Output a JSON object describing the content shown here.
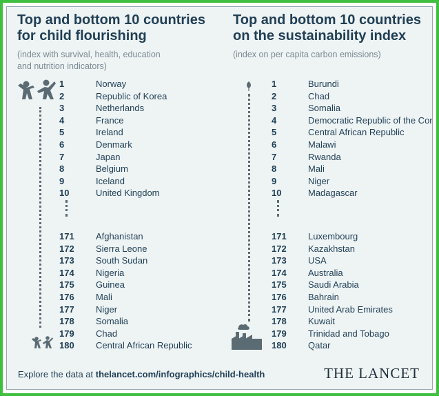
{
  "left": {
    "title_line1": "Top and bottom 10 countries",
    "title_line2": "for child flourishing",
    "subtitle_line1": "(index with survival, health, education",
    "subtitle_line2": "and nutrition indicators)",
    "top": [
      {
        "rank": "1",
        "country": "Norway"
      },
      {
        "rank": "2",
        "country": "Republic of Korea"
      },
      {
        "rank": "3",
        "country": "Netherlands"
      },
      {
        "rank": "4",
        "country": "France"
      },
      {
        "rank": "5",
        "country": "Ireland"
      },
      {
        "rank": "6",
        "country": "Denmark"
      },
      {
        "rank": "7",
        "country": "Japan"
      },
      {
        "rank": "8",
        "country": "Belgium"
      },
      {
        "rank": "9",
        "country": "Iceland"
      },
      {
        "rank": "10",
        "country": "United Kingdom"
      }
    ],
    "bottom": [
      {
        "rank": "171",
        "country": "Afghanistan"
      },
      {
        "rank": "172",
        "country": "Sierra Leone"
      },
      {
        "rank": "173",
        "country": "South Sudan"
      },
      {
        "rank": "174",
        "country": "Nigeria"
      },
      {
        "rank": "175",
        "country": "Guinea"
      },
      {
        "rank": "176",
        "country": "Mali"
      },
      {
        "rank": "177",
        "country": "Niger"
      },
      {
        "rank": "178",
        "country": "Somalia"
      },
      {
        "rank": "179",
        "country": "Chad"
      },
      {
        "rank": "180",
        "country": "Central African Republic"
      }
    ],
    "top_icon": "children-playing-icon",
    "bottom_icon": "children-small-icon"
  },
  "right": {
    "title_line1": "Top and bottom 10 countries",
    "title_line2": "on the sustainability index",
    "subtitle_line1": "(index on per capita carbon emissions)",
    "top": [
      {
        "rank": "1",
        "country": "Burundi"
      },
      {
        "rank": "2",
        "country": "Chad"
      },
      {
        "rank": "3",
        "country": "Somalia"
      },
      {
        "rank": "4",
        "country": "Democratic Republic of the Congo"
      },
      {
        "rank": "5",
        "country": "Central African Republic"
      },
      {
        "rank": "6",
        "country": "Malawi"
      },
      {
        "rank": "7",
        "country": "Rwanda"
      },
      {
        "rank": "8",
        "country": "Mali"
      },
      {
        "rank": "9",
        "country": "Niger"
      },
      {
        "rank": "10",
        "country": "Madagascar"
      }
    ],
    "bottom": [
      {
        "rank": "171",
        "country": "Luxembourg"
      },
      {
        "rank": "172",
        "country": "Kazakhstan"
      },
      {
        "rank": "173",
        "country": "USA"
      },
      {
        "rank": "174",
        "country": "Australia"
      },
      {
        "rank": "175",
        "country": "Saudi Arabia"
      },
      {
        "rank": "176",
        "country": "Bahrain"
      },
      {
        "rank": "177",
        "country": "United Arab Emirates"
      },
      {
        "rank": "178",
        "country": "Kuwait"
      },
      {
        "rank": "179",
        "country": "Trinidad and Tobago"
      },
      {
        "rank": "180",
        "country": "Qatar"
      }
    ],
    "top_icon": "leaf-icon",
    "bottom_icon": "factory-icon"
  },
  "footer": {
    "prefix": "Explore the data at ",
    "link": "thelancet.com/infographics/child-health"
  },
  "brand": "THE LANCET",
  "colors": {
    "text": "#1f3f55",
    "subtitle": "#7b8a93",
    "icon": "#5b6b73",
    "background": "#eef3f4",
    "outer_border": "#3fbf3f"
  }
}
